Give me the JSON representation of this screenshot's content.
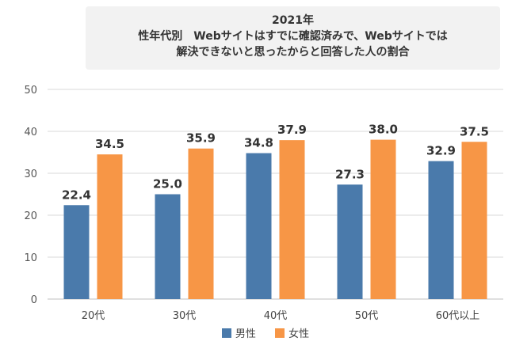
{
  "title": {
    "line1": "2021年",
    "line2": "性年代別　Webサイトはすでに確認済みで、Webサイトでは",
    "line3": "解決できないと思ったからと回答した人の割合"
  },
  "chart_data": {
    "type": "bar",
    "categories": [
      "20代",
      "30代",
      "40代",
      "50代",
      "60代以上"
    ],
    "series": [
      {
        "name": "男性",
        "values": [
          22.4,
          25.0,
          34.8,
          27.3,
          32.9
        ],
        "color": "#4a7aab"
      },
      {
        "name": "女性",
        "values": [
          34.5,
          35.9,
          37.9,
          38.0,
          37.5
        ],
        "color": "#f79646"
      }
    ],
    "ylim": [
      0,
      50
    ],
    "yticks": [
      0,
      10,
      20,
      30,
      40,
      50
    ],
    "grid": true,
    "legend_position": "bottom"
  }
}
